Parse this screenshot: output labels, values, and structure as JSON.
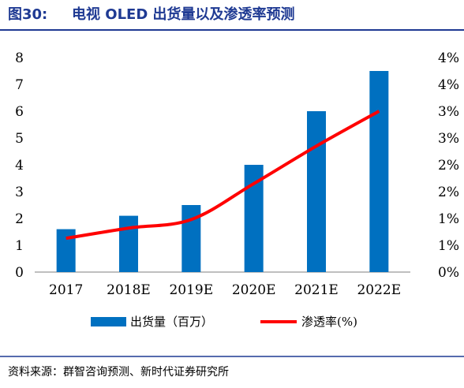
{
  "figure": {
    "label": "图30:",
    "title": "电视 OLED 出货量以及渗透率预测",
    "source": "资料来源：群智咨询预测、新时代证券研究所"
  },
  "colors": {
    "title": "#1f3a93",
    "bar": "#0070c0",
    "line": "#ff0000",
    "rule": "#1f3a93"
  },
  "chart_data": {
    "type": "bar",
    "categories": [
      "2017",
      "2018E",
      "2019E",
      "2020E",
      "2021E",
      "2022E"
    ],
    "series": [
      {
        "name": "出货量（百万）",
        "type": "bar",
        "axis": "left",
        "values": [
          1.6,
          2.1,
          2.5,
          4.0,
          6.0,
          7.5
        ]
      },
      {
        "name": "渗透率(%)",
        "type": "line",
        "axis": "right",
        "values": [
          0.63,
          0.82,
          0.98,
          1.65,
          2.35,
          3.0
        ]
      }
    ],
    "y_left": {
      "min": 0,
      "max": 8,
      "ticks": [
        "0",
        "1",
        "2",
        "3",
        "4",
        "5",
        "6",
        "7",
        "8"
      ]
    },
    "y_right": {
      "min": 0,
      "max": 4,
      "ticks": [
        "0%",
        "1%",
        "1%",
        "2%",
        "2%",
        "3%",
        "3%",
        "4%",
        "4%"
      ]
    },
    "legend_position": "bottom",
    "grid": false
  }
}
